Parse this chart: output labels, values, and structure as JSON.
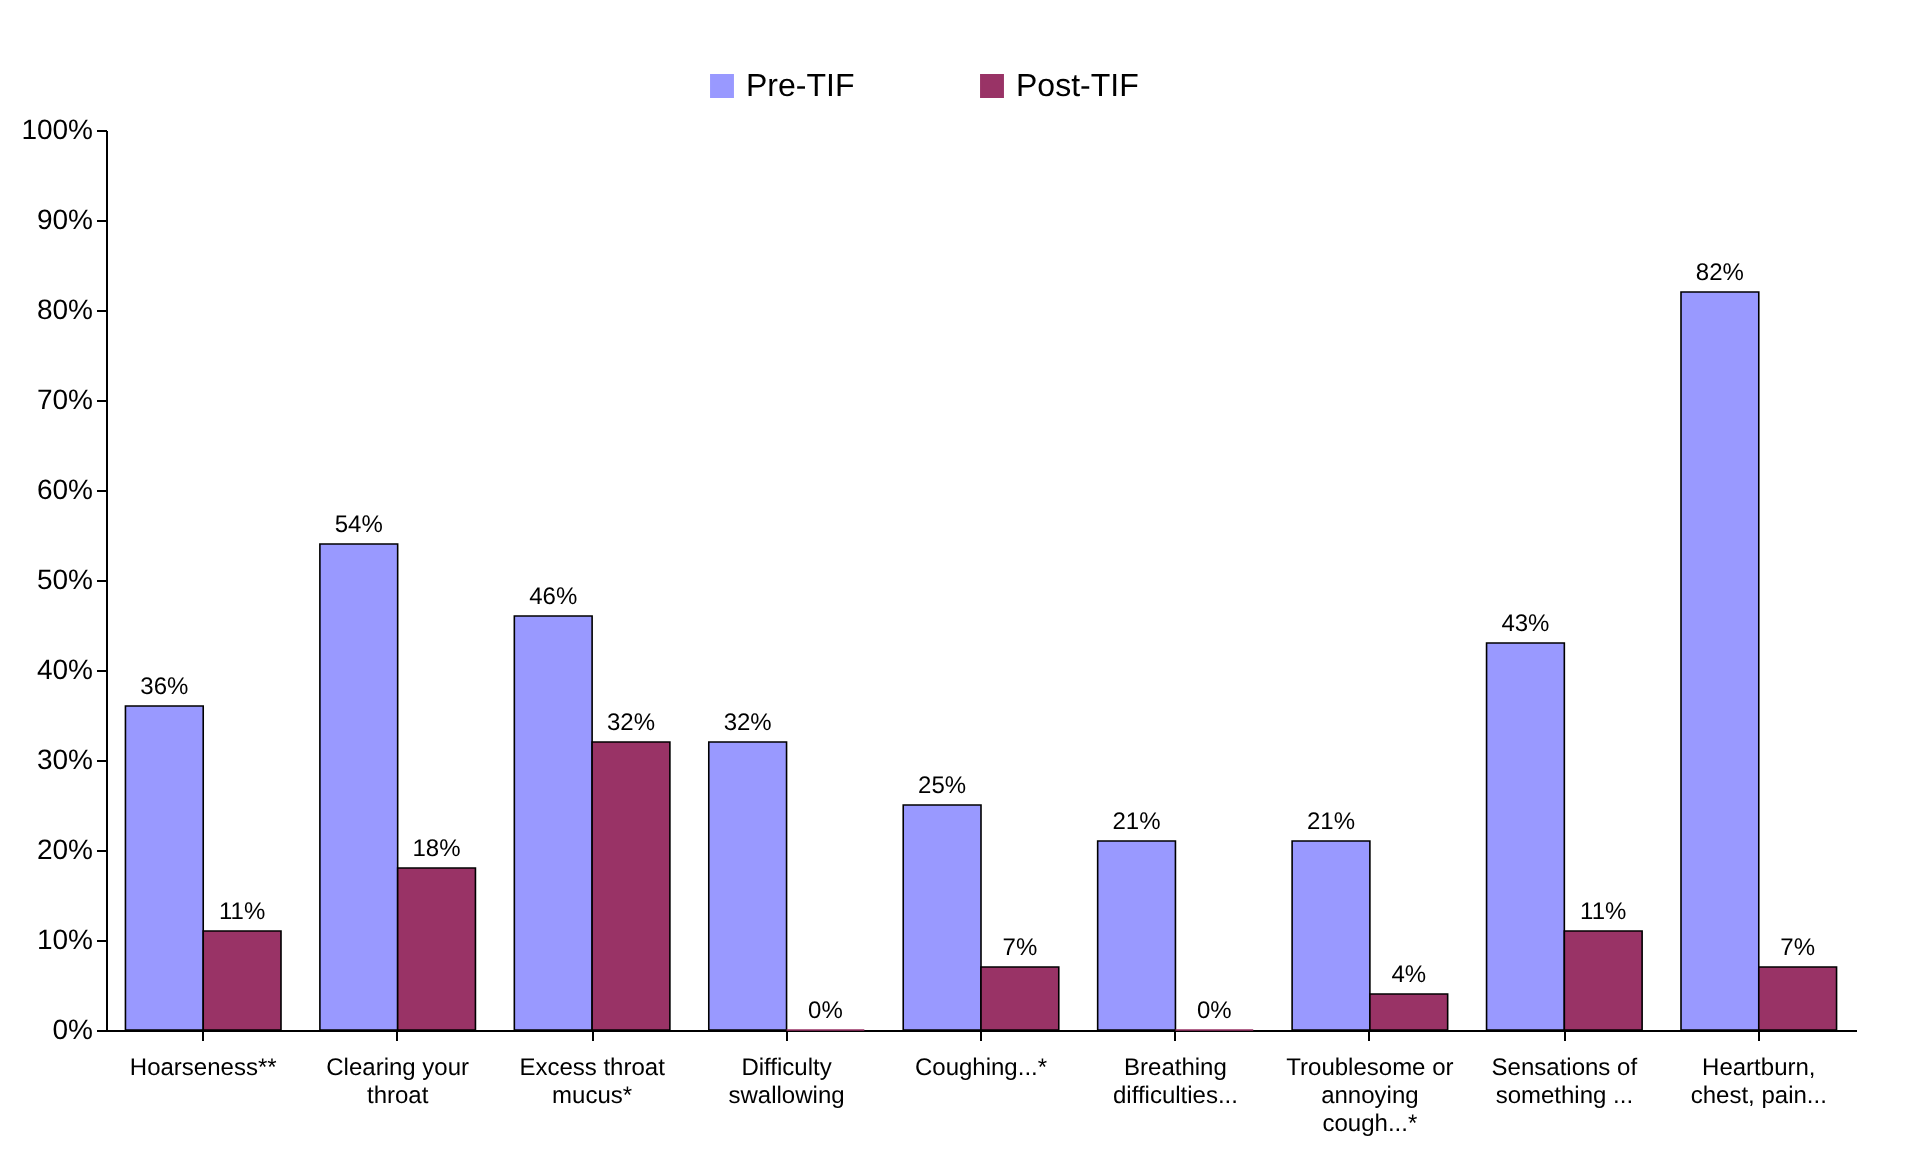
{
  "chart_data": {
    "type": "bar",
    "categories": [
      "Hoarseness**",
      "Clearing your throat",
      "Excess throat mucus*",
      "Difficulty swallowing",
      "Coughing...*",
      "Breathing difficulties...",
      "Troublesome or annoying cough...*",
      "Sensations of something ...",
      "Heartburn, chest, pain..."
    ],
    "series": [
      {
        "name": "Pre-TIF",
        "color": "#9999ff",
        "values": [
          36,
          54,
          46,
          32,
          25,
          21,
          21,
          43,
          82
        ],
        "value_labels": [
          "36%",
          "54%",
          "46%",
          "32%",
          "25%",
          "21%",
          "21%",
          "43%",
          "82%"
        ]
      },
      {
        "name": "Post-TIF",
        "color": "#993366",
        "values": [
          11,
          18,
          32,
          0,
          7,
          0,
          4,
          11,
          7
        ],
        "value_labels": [
          "11%",
          "18%",
          "32%",
          "0%",
          "7%",
          "0%",
          "4%",
          "11%",
          "7%"
        ]
      }
    ],
    "ylim": [
      0,
      100
    ],
    "yticks": [
      {
        "value": 0,
        "label": "0%"
      },
      {
        "value": 10,
        "label": "10%"
      },
      {
        "value": 20,
        "label": "20%"
      },
      {
        "value": 30,
        "label": "30%"
      },
      {
        "value": 40,
        "label": "40%"
      },
      {
        "value": 50,
        "label": "50%"
      },
      {
        "value": 60,
        "label": "60%"
      },
      {
        "value": 70,
        "label": "70%"
      },
      {
        "value": 80,
        "label": "80%"
      },
      {
        "value": 90,
        "label": "90%"
      },
      {
        "value": 100,
        "label": "100%"
      }
    ],
    "legend": "top",
    "grid": false
  }
}
